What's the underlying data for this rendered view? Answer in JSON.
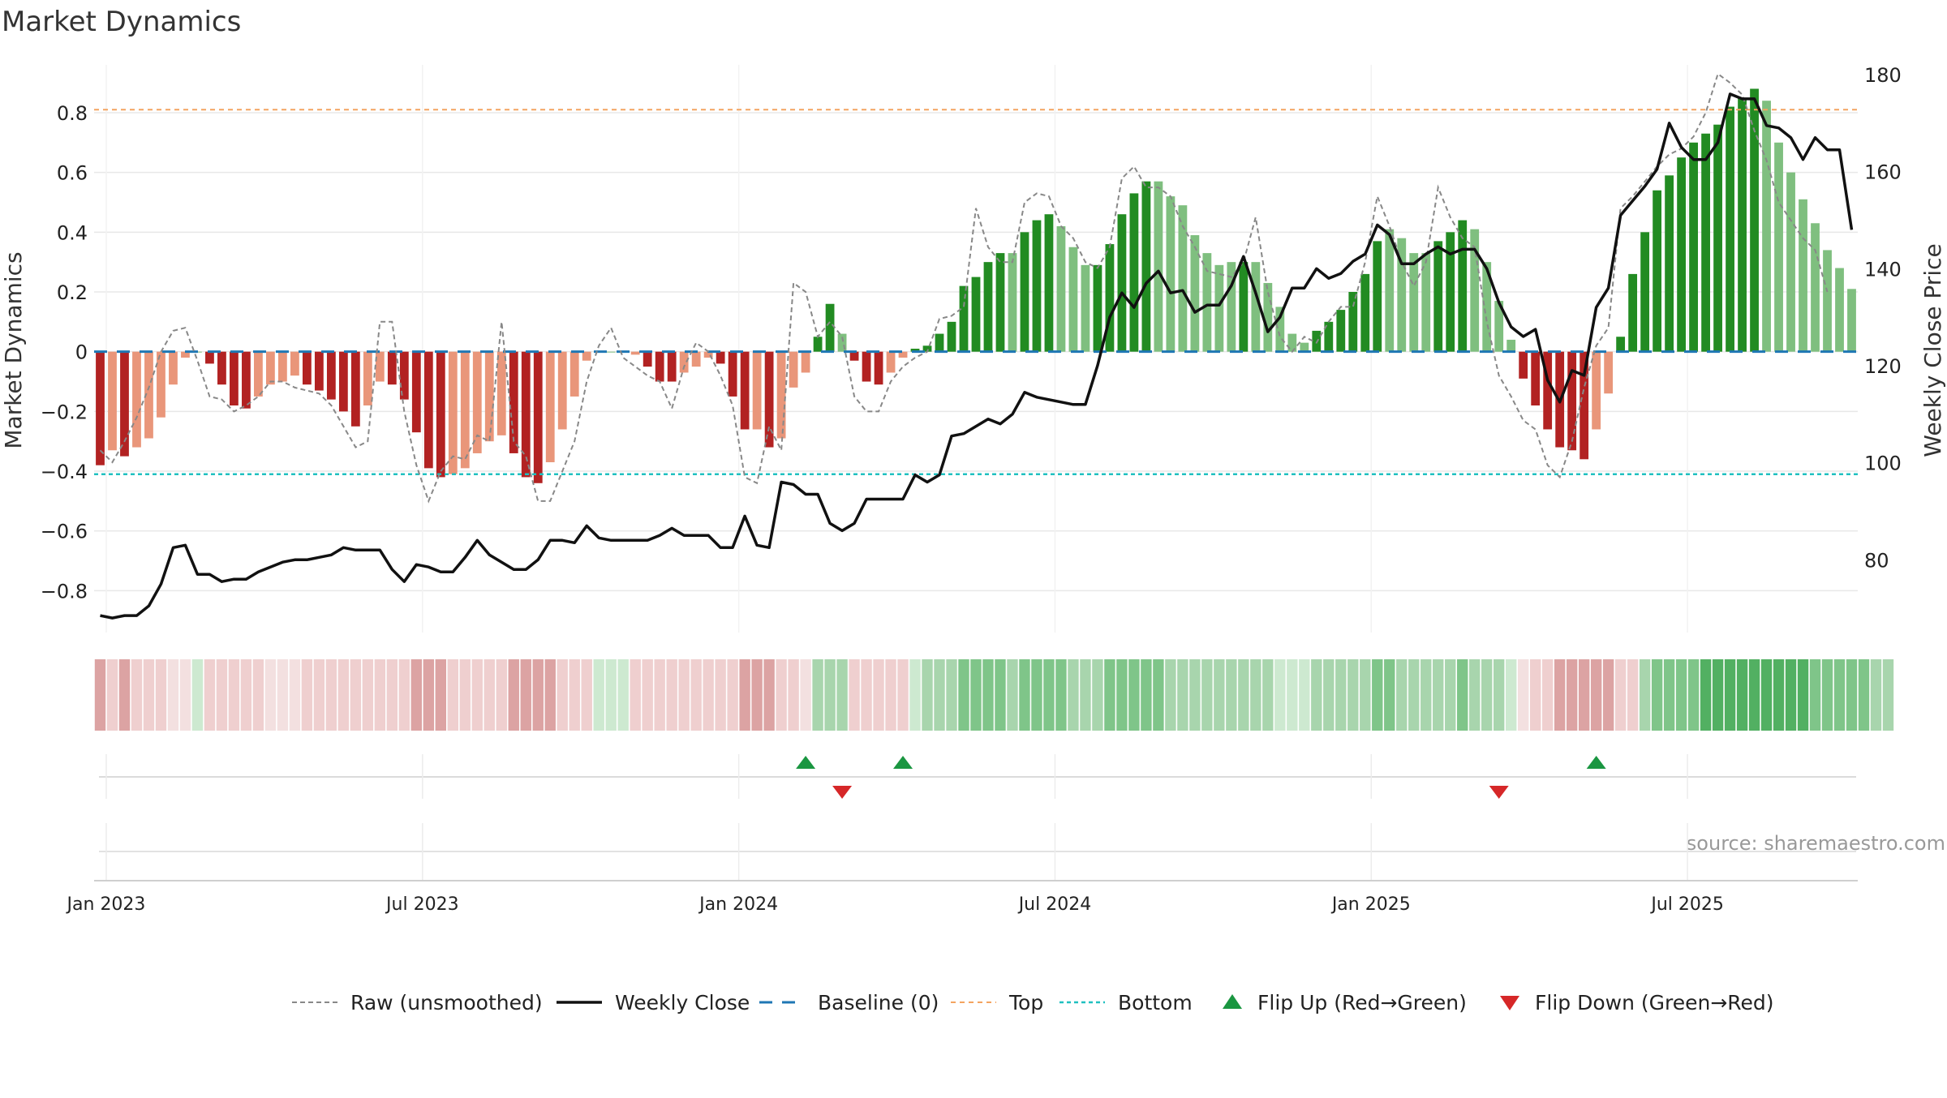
{
  "chart_data": {
    "type": "bar",
    "title": "Market Dynamics",
    "ylabel_left": "Market Dynamics",
    "ylabel_right": "Weekly Close Price",
    "y_left_ticks": [
      "0.8",
      "0.6",
      "0.4",
      "0.2",
      "0",
      "−0.2",
      "−0.4",
      "−0.6",
      "−0.8"
    ],
    "y_left_tick_values": [
      0.8,
      0.6,
      0.4,
      0.2,
      0,
      -0.2,
      -0.4,
      -0.6,
      -0.8
    ],
    "y_left_range": [
      -0.94,
      0.96
    ],
    "y_right_ticks": [
      "180",
      "160",
      "140",
      "120",
      "100",
      "80"
    ],
    "y_right_tick_values": [
      180,
      160,
      140,
      120,
      100,
      80
    ],
    "y_right_range": [
      65,
      182
    ],
    "x_ticks": [
      "Jan 2023",
      "Jul 2023",
      "Jan 2024",
      "Jul 2024",
      "Jan 2025",
      "Jul 2025"
    ],
    "x_tick_weeks": [
      1,
      27,
      53,
      79,
      105,
      131
    ],
    "top_level": 0.81,
    "bottom_level": -0.41,
    "baseline": 0,
    "grid": true,
    "legend_position": "bottom",
    "legend": [
      {
        "key": "raw",
        "label": "Raw (unsmoothed)"
      },
      {
        "key": "close",
        "label": "Weekly Close"
      },
      {
        "key": "baseline",
        "label": "Baseline (0)"
      },
      {
        "key": "top",
        "label": "Top"
      },
      {
        "key": "bottom",
        "label": "Bottom"
      },
      {
        "key": "flip_up",
        "label": "Flip Up (Red→Green)"
      },
      {
        "key": "flip_down",
        "label": "Flip Down (Green→Red)"
      }
    ],
    "source_text": "source: sharemaestro.com",
    "colors": {
      "bar_up_strong": "#228b22",
      "bar_up_weak": "#7fbf7f",
      "bar_down_strong": "#b22222",
      "bar_down_weak": "#e9967a",
      "raw": "#888888",
      "close": "#111111",
      "baseline": "#1f77b4",
      "top": "#f4a460",
      "bottom": "#20c0c0",
      "flip_up": "#1a9641",
      "flip_down": "#d62728",
      "grid": "#e8e8e8"
    },
    "series": [
      {
        "name": "Market Dynamics",
        "values": [
          -0.38,
          -0.33,
          -0.35,
          -0.32,
          -0.29,
          -0.22,
          -0.11,
          -0.02,
          0,
          -0.04,
          -0.11,
          -0.18,
          -0.19,
          -0.15,
          -0.11,
          -0.1,
          -0.08,
          -0.11,
          -0.13,
          -0.16,
          -0.2,
          -0.25,
          -0.18,
          -0.1,
          -0.11,
          -0.16,
          -0.27,
          -0.39,
          -0.42,
          -0.41,
          -0.39,
          -0.34,
          -0.3,
          -0.28,
          -0.34,
          -0.42,
          -0.44,
          -0.37,
          -0.26,
          -0.15,
          -0.03,
          0,
          0,
          0,
          -0.01,
          -0.05,
          -0.1,
          -0.1,
          -0.07,
          -0.05,
          -0.02,
          -0.04,
          -0.15,
          -0.26,
          -0.26,
          -0.32,
          -0.29,
          -0.12,
          -0.07,
          0.05,
          0.16,
          0.06,
          -0.03,
          -0.1,
          -0.11,
          -0.07,
          -0.02,
          0.01,
          0.02,
          0.06,
          0.1,
          0.22,
          0.25,
          0.3,
          0.33,
          0.33,
          0.4,
          0.44,
          0.46,
          0.42,
          0.35,
          0.29,
          0.29,
          0.36,
          0.46,
          0.53,
          0.57,
          0.57,
          0.52,
          0.49,
          0.39,
          0.33,
          0.29,
          0.3,
          0.3,
          0.3,
          0.23,
          0.15,
          0.06,
          0.03,
          0.07,
          0.1,
          0.14,
          0.2,
          0.26,
          0.37,
          0.41,
          0.38,
          0.33,
          0.33,
          0.37,
          0.4,
          0.44,
          0.41,
          0.3,
          0.17,
          0.04,
          -0.09,
          -0.18,
          -0.26,
          -0.32,
          -0.33,
          -0.36,
          -0.26,
          -0.14,
          0.05,
          0.26,
          0.4,
          0.54,
          0.59,
          0.65,
          0.7,
          0.73,
          0.76,
          0.82,
          0.85,
          0.88,
          0.84,
          0.7,
          0.6,
          0.51,
          0.43,
          0.34,
          0.28,
          0.21
        ],
        "emphasis": [
          1,
          0,
          1,
          0,
          0,
          0,
          0,
          0,
          0,
          1,
          1,
          1,
          1,
          0,
          0,
          0,
          0,
          1,
          1,
          1,
          1,
          1,
          0,
          0,
          1,
          1,
          1,
          1,
          1,
          0,
          0,
          0,
          0,
          0,
          1,
          1,
          1,
          0,
          0,
          0,
          0,
          0,
          0,
          0,
          0,
          1,
          1,
          1,
          0,
          0,
          0,
          1,
          1,
          1,
          0,
          1,
          0,
          0,
          0,
          1,
          1,
          0,
          1,
          1,
          1,
          0,
          0,
          1,
          1,
          1,
          1,
          1,
          1,
          1,
          1,
          0,
          1,
          1,
          1,
          0,
          0,
          0,
          1,
          1,
          1,
          1,
          1,
          0,
          0,
          0,
          0,
          0,
          0,
          0,
          1,
          0,
          0,
          0,
          0,
          0,
          1,
          1,
          1,
          1,
          1,
          1,
          0,
          0,
          0,
          0,
          1,
          1,
          1,
          0,
          0,
          0,
          0,
          1,
          1,
          1,
          1,
          1,
          1,
          0,
          0,
          1,
          1,
          1,
          1,
          1,
          1,
          1,
          1,
          1,
          1,
          1,
          1,
          0,
          0,
          0,
          0,
          0,
          0,
          0,
          0
        ]
      },
      {
        "name": "Raw (unsmoothed)",
        "values": [
          -0.33,
          -0.37,
          -0.3,
          -0.22,
          -0.12,
          0,
          0.07,
          0.08,
          -0.03,
          -0.15,
          -0.16,
          -0.2,
          -0.18,
          -0.15,
          -0.1,
          -0.1,
          -0.12,
          -0.13,
          -0.14,
          -0.18,
          -0.25,
          -0.32,
          -0.3,
          0.1,
          0.1,
          -0.2,
          -0.38,
          -0.5,
          -0.4,
          -0.35,
          -0.36,
          -0.28,
          -0.3,
          0.1,
          -0.3,
          -0.35,
          -0.5,
          -0.5,
          -0.4,
          -0.3,
          -0.1,
          0.02,
          0.08,
          -0.02,
          -0.05,
          -0.08,
          -0.1,
          -0.19,
          -0.05,
          0.03,
          0,
          -0.08,
          -0.18,
          -0.42,
          -0.44,
          -0.25,
          -0.33,
          0.23,
          0.2,
          0.05,
          0.1,
          0.05,
          -0.15,
          -0.2,
          -0.2,
          -0.1,
          -0.05,
          -0.02,
          0,
          0.11,
          0.12,
          0.15,
          0.48,
          0.35,
          0.3,
          0.3,
          0.5,
          0.53,
          0.52,
          0.42,
          0.38,
          0.3,
          0.28,
          0.35,
          0.58,
          0.62,
          0.55,
          0.55,
          0.52,
          0.42,
          0.35,
          0.27,
          0.26,
          0.25,
          0.3,
          0.45,
          0.2,
          0.05,
          0,
          0.05,
          0.03,
          0.1,
          0.15,
          0.15,
          0.3,
          0.52,
          0.42,
          0.3,
          0.22,
          0.3,
          0.55,
          0.45,
          0.38,
          0.35,
          0.1,
          -0.08,
          -0.15,
          -0.23,
          -0.26,
          -0.38,
          -0.42,
          -0.3,
          -0.12,
          0.02,
          0.08,
          0.48,
          0.52,
          0.57,
          0.62,
          0.66,
          0.68,
          0.72,
          0.8,
          0.93,
          0.9,
          0.86,
          0.74,
          0.64,
          0.5,
          0.44,
          0.38,
          0.34,
          0.2
        ]
      },
      {
        "name": "Weekly Close",
        "values": [
          68.5,
          68,
          68.5,
          68.5,
          70.5,
          75,
          82.5,
          83,
          77,
          77,
          75.5,
          76,
          76,
          77.5,
          78.5,
          79.5,
          80,
          80,
          80.5,
          81,
          82.5,
          82,
          82,
          82,
          78,
          75.5,
          79,
          78.5,
          77.5,
          77.5,
          80.5,
          84,
          81,
          79.5,
          78,
          78,
          80,
          84,
          84,
          83.5,
          87,
          84.5,
          84,
          84,
          84,
          84,
          85,
          86.5,
          85,
          85,
          85,
          82.5,
          82.5,
          89,
          83,
          82.5,
          96,
          95.5,
          93.5,
          93.5,
          87.5,
          86,
          87.5,
          92.5,
          92.5,
          92.5,
          92.5,
          97.5,
          96,
          97.5,
          105.5,
          106,
          107.5,
          109,
          108,
          110,
          114.5,
          113.5,
          113,
          112.5,
          112,
          112,
          120,
          130,
          135,
          132,
          137,
          139.5,
          135,
          135.5,
          131,
          132.5,
          132.5,
          136.5,
          142.5,
          135,
          127,
          130,
          136,
          136,
          140,
          138,
          139,
          141.5,
          143,
          149,
          147,
          141,
          141,
          143,
          144.5,
          143,
          144,
          144,
          140,
          133,
          128,
          126,
          127.5,
          117,
          112.5,
          119,
          118,
          132,
          136,
          151,
          154,
          157,
          160.5,
          170,
          165,
          162.5,
          162.5,
          166,
          176,
          175,
          175,
          169.5,
          169,
          167,
          162.5,
          167,
          164.5,
          164.5,
          148
        ]
      }
    ],
    "regime": [
      -2,
      -1,
      -2,
      -1,
      -1,
      -1,
      0,
      0,
      0,
      -1,
      -1,
      -1,
      -1,
      -1,
      0,
      0,
      0,
      -1,
      -1,
      -1,
      -1,
      -1,
      -1,
      -1,
      -1,
      -1,
      -2,
      -2,
      -2,
      -1,
      -1,
      -1,
      -1,
      -1,
      -2,
      -2,
      -2,
      -2,
      -1,
      -1,
      -1,
      0,
      0,
      0,
      -1,
      -1,
      -1,
      -1,
      -1,
      -1,
      -1,
      -1,
      -1,
      -2,
      -2,
      -2,
      -1,
      -1,
      0,
      1,
      1,
      1,
      -1,
      -1,
      -1,
      -1,
      -1,
      0,
      1,
      1,
      1,
      2,
      2,
      2,
      2,
      1,
      2,
      2,
      2,
      2,
      1,
      1,
      1,
      2,
      2,
      2,
      2,
      2,
      1,
      1,
      1,
      1,
      1,
      1,
      1,
      1,
      1,
      0,
      0,
      0,
      1,
      1,
      1,
      1,
      1,
      2,
      2,
      1,
      1,
      1,
      1,
      1,
      2,
      1,
      1,
      1,
      0,
      0,
      -1,
      -1,
      -2,
      -2,
      -2,
      -2,
      -2,
      -1,
      -1,
      1,
      2,
      2,
      2,
      2,
      3,
      3,
      3,
      3,
      3,
      3,
      3,
      3,
      3,
      2,
      2,
      2,
      2,
      2,
      1,
      1
    ],
    "flips": [
      {
        "week": 58,
        "dir": "up"
      },
      {
        "week": 61,
        "dir": "down"
      },
      {
        "week": 66,
        "dir": "up"
      },
      {
        "week": 115,
        "dir": "down"
      },
      {
        "week": 123,
        "dir": "up"
      }
    ]
  }
}
